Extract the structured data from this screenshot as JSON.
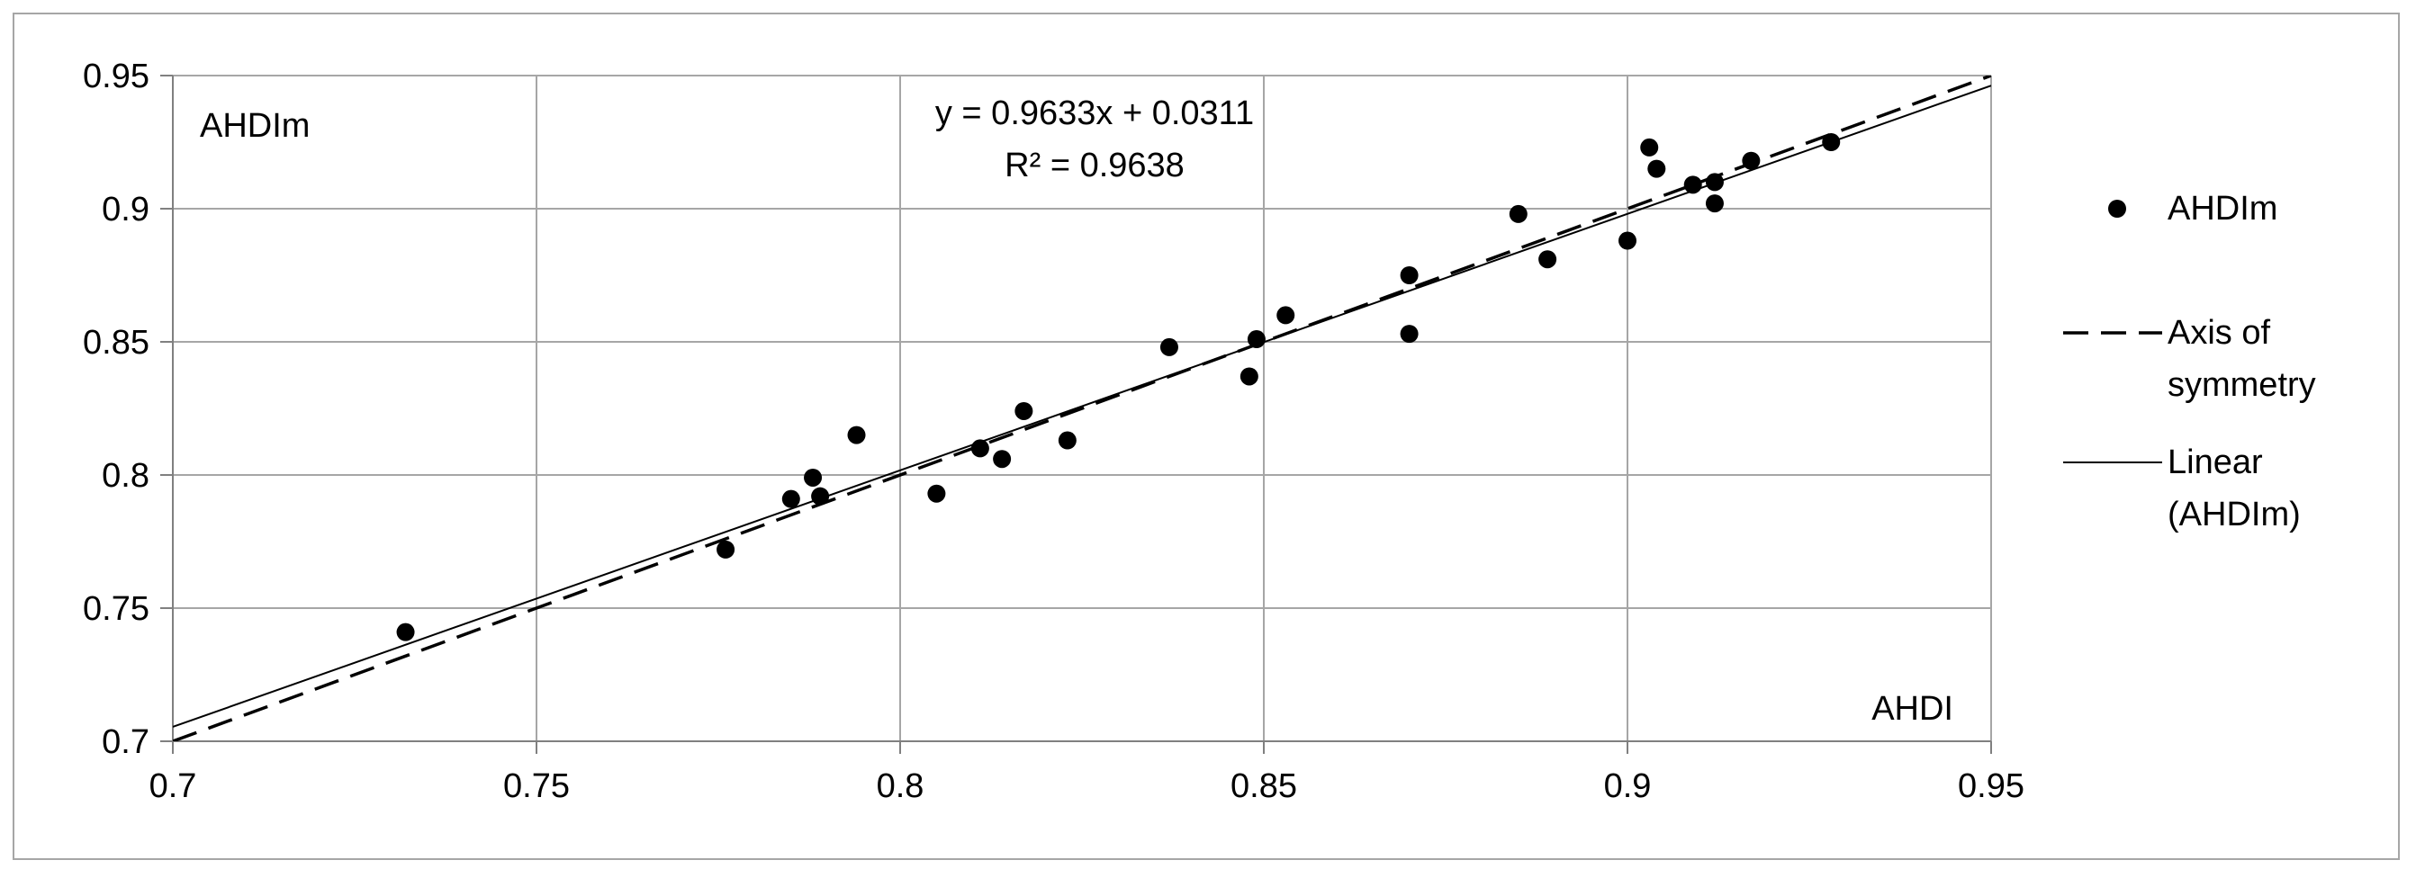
{
  "chart_data": {
    "type": "scatter",
    "xlabel": "AHDI",
    "ylabel": "AHDIm",
    "xlim": [
      0.7,
      0.95
    ],
    "ylim": [
      0.7,
      0.95
    ],
    "xticks": [
      "0.7",
      "0.75",
      "0.8",
      "0.85",
      "0.9",
      "0.95"
    ],
    "yticks": [
      "0.7",
      "0.75",
      "0.8",
      "0.85",
      "0.9",
      "0.95"
    ],
    "grid": true,
    "legend_position": "right",
    "equation": "y = 0.9633x + 0.0311",
    "r_squared": "R² = 0.9638",
    "series": [
      {
        "name": "AHDIm",
        "marker": "circle",
        "color": "#000000",
        "points": [
          [
            0.732,
            0.741
          ],
          [
            0.776,
            0.772
          ],
          [
            0.785,
            0.791
          ],
          [
            0.788,
            0.799
          ],
          [
            0.789,
            0.792
          ],
          [
            0.794,
            0.815
          ],
          [
            0.805,
            0.793
          ],
          [
            0.811,
            0.81
          ],
          [
            0.814,
            0.806
          ],
          [
            0.817,
            0.824
          ],
          [
            0.823,
            0.813
          ],
          [
            0.837,
            0.848
          ],
          [
            0.848,
            0.837
          ],
          [
            0.849,
            0.851
          ],
          [
            0.853,
            0.86
          ],
          [
            0.87,
            0.875
          ],
          [
            0.87,
            0.853
          ],
          [
            0.885,
            0.898
          ],
          [
            0.889,
            0.881
          ],
          [
            0.9,
            0.888
          ],
          [
            0.903,
            0.923
          ],
          [
            0.904,
            0.915
          ],
          [
            0.909,
            0.909
          ],
          [
            0.912,
            0.91
          ],
          [
            0.912,
            0.902
          ],
          [
            0.917,
            0.918
          ],
          [
            0.928,
            0.925
          ]
        ]
      }
    ],
    "lines": [
      {
        "name": "Axis of symmetry",
        "style": "dashed",
        "color": "#000000",
        "slope": 1.0,
        "intercept": 0.0
      },
      {
        "name": "Linear (AHDIm)",
        "style": "solid",
        "color": "#000000",
        "slope": 0.9633,
        "intercept": 0.0311
      }
    ],
    "legend": [
      {
        "label_lines": [
          "AHDIm"
        ],
        "symbol": "dot"
      },
      {
        "label_lines": [
          "Axis of",
          "symmetry"
        ],
        "symbol": "dashed-line"
      },
      {
        "label_lines": [
          "Linear",
          "(AHDIm)"
        ],
        "symbol": "solid-line"
      }
    ]
  }
}
